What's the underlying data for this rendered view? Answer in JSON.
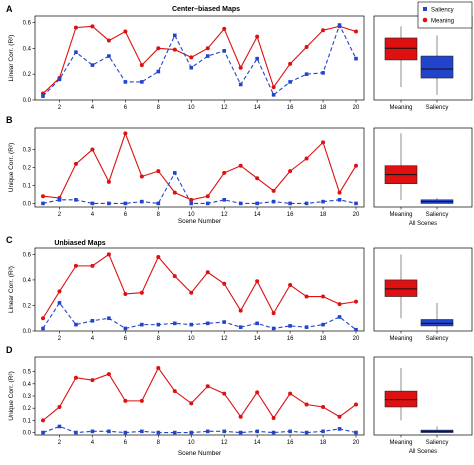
{
  "figure": {
    "section_titles": [
      "Center–biased Maps",
      "Unbiased Maps"
    ],
    "legend": [
      {
        "label": "Saliency",
        "color": "#2244cc",
        "marker": "square",
        "line": "dashed"
      },
      {
        "label": "Meaning",
        "color": "#dd1111",
        "marker": "circle",
        "line": "solid"
      }
    ]
  },
  "chart_data": [
    {
      "panel": "A",
      "type": "line",
      "title": "Center–biased Maps",
      "xlabel": "",
      "ylabel": "Linear Corr. (R²)",
      "x": [
        1,
        2,
        3,
        4,
        5,
        6,
        7,
        8,
        9,
        10,
        11,
        12,
        13,
        14,
        15,
        16,
        17,
        18,
        19,
        20
      ],
      "xticks": [
        2,
        4,
        6,
        8,
        10,
        12,
        14,
        16,
        18,
        20
      ],
      "ylim": [
        0,
        0.65
      ],
      "yticks": [
        0.0,
        0.2,
        0.4,
        0.6
      ],
      "ytick_labels": [
        "0.0",
        "0.2",
        "0.4",
        "0.6"
      ],
      "series": [
        {
          "name": "Meaning",
          "values": [
            0.05,
            0.17,
            0.56,
            0.57,
            0.46,
            0.53,
            0.27,
            0.4,
            0.39,
            0.33,
            0.4,
            0.55,
            0.25,
            0.49,
            0.1,
            0.28,
            0.41,
            0.54,
            0.57,
            0.53
          ]
        },
        {
          "name": "Saliency",
          "values": [
            0.03,
            0.16,
            0.37,
            0.27,
            0.34,
            0.14,
            0.14,
            0.22,
            0.5,
            0.25,
            0.34,
            0.38,
            0.12,
            0.32,
            0.04,
            0.14,
            0.2,
            0.21,
            0.58,
            0.32
          ]
        }
      ]
    },
    {
      "panel": "A-summary",
      "type": "box",
      "categories": [
        "Meaning",
        "Saliency"
      ],
      "xlabel": "",
      "ylim": [
        0,
        0.65
      ],
      "boxes": [
        {
          "category": "Meaning",
          "min": 0.1,
          "q1": 0.31,
          "median": 0.4,
          "q3": 0.48,
          "max": 0.57
        },
        {
          "category": "Saliency",
          "min": 0.04,
          "q1": 0.17,
          "median": 0.24,
          "q3": 0.34,
          "max": 0.5
        }
      ]
    },
    {
      "panel": "B",
      "type": "line",
      "xlabel": "Scene Number",
      "ylabel": "Unique Corr. (R²)",
      "x": [
        1,
        2,
        3,
        4,
        5,
        6,
        7,
        8,
        9,
        10,
        11,
        12,
        13,
        14,
        15,
        16,
        17,
        18,
        19,
        20
      ],
      "xticks": [
        2,
        4,
        6,
        8,
        10,
        12,
        14,
        16,
        18,
        20
      ],
      "ylim": [
        -0.02,
        0.42
      ],
      "yticks": [
        0.0,
        0.1,
        0.2,
        0.3
      ],
      "ytick_labels": [
        "0.0",
        "0.1",
        "0.2",
        "0.3"
      ],
      "series": [
        {
          "name": "Meaning",
          "values": [
            0.04,
            0.03,
            0.22,
            0.3,
            0.12,
            0.39,
            0.15,
            0.18,
            0.06,
            0.02,
            0.04,
            0.17,
            0.21,
            0.14,
            0.07,
            0.18,
            0.25,
            0.34,
            0.06,
            0.21
          ]
        },
        {
          "name": "Saliency",
          "values": [
            0.0,
            0.02,
            0.02,
            0.0,
            0.0,
            0.0,
            0.01,
            0.0,
            0.17,
            0.0,
            0.0,
            0.02,
            0.0,
            0.0,
            0.01,
            0.0,
            0.0,
            0.01,
            0.02,
            0.0
          ]
        }
      ]
    },
    {
      "panel": "B-summary",
      "type": "box",
      "categories": [
        "Meaning",
        "Saliency"
      ],
      "xlabel": "All Scenes",
      "ylim": [
        -0.02,
        0.42
      ],
      "boxes": [
        {
          "category": "Meaning",
          "min": 0.02,
          "q1": 0.11,
          "median": 0.16,
          "q3": 0.21,
          "max": 0.39
        },
        {
          "category": "Saliency",
          "min": 0.0,
          "q1": 0.0,
          "median": 0.01,
          "q3": 0.02,
          "max": 0.03
        }
      ]
    },
    {
      "panel": "C",
      "type": "line",
      "title": "Unbiased Maps",
      "xlabel": "",
      "ylabel": "Linear Corr. (R²)",
      "x": [
        1,
        2,
        3,
        4,
        5,
        6,
        7,
        8,
        9,
        10,
        11,
        12,
        13,
        14,
        15,
        16,
        17,
        18,
        19,
        20
      ],
      "xticks": [
        2,
        4,
        6,
        8,
        10,
        12,
        14,
        16,
        18,
        20
      ],
      "ylim": [
        0,
        0.65
      ],
      "yticks": [
        0.0,
        0.2,
        0.4,
        0.6
      ],
      "ytick_labels": [
        "0.0",
        "0.2",
        "0.4",
        "0.6"
      ],
      "series": [
        {
          "name": "Meaning",
          "values": [
            0.1,
            0.31,
            0.51,
            0.51,
            0.6,
            0.29,
            0.3,
            0.58,
            0.43,
            0.3,
            0.46,
            0.37,
            0.16,
            0.39,
            0.14,
            0.36,
            0.27,
            0.27,
            0.21,
            0.23
          ]
        },
        {
          "name": "Saliency",
          "values": [
            0.02,
            0.22,
            0.05,
            0.08,
            0.1,
            0.02,
            0.05,
            0.05,
            0.06,
            0.05,
            0.06,
            0.07,
            0.03,
            0.06,
            0.02,
            0.04,
            0.03,
            0.05,
            0.11,
            0.01
          ]
        }
      ]
    },
    {
      "panel": "C-summary",
      "type": "box",
      "categories": [
        "Meaning",
        "Saliency"
      ],
      "xlabel": "",
      "ylim": [
        0,
        0.65
      ],
      "boxes": [
        {
          "category": "Meaning",
          "min": 0.1,
          "q1": 0.27,
          "median": 0.33,
          "q3": 0.4,
          "max": 0.6
        },
        {
          "category": "Saliency",
          "min": 0.01,
          "q1": 0.04,
          "median": 0.06,
          "q3": 0.09,
          "max": 0.22
        }
      ]
    },
    {
      "panel": "D",
      "type": "line",
      "xlabel": "Scene Number",
      "ylabel": "Unique Corr. (R²)",
      "x": [
        1,
        2,
        3,
        4,
        5,
        6,
        7,
        8,
        9,
        10,
        11,
        12,
        13,
        14,
        15,
        16,
        17,
        18,
        19,
        20
      ],
      "xticks": [
        2,
        4,
        6,
        8,
        10,
        12,
        14,
        16,
        18,
        20
      ],
      "ylim": [
        -0.02,
        0.62
      ],
      "yticks": [
        0.0,
        0.1,
        0.2,
        0.3,
        0.4,
        0.5
      ],
      "ytick_labels": [
        "0.0",
        "0.1",
        "0.2",
        "0.3",
        "0.4",
        "0.5"
      ],
      "series": [
        {
          "name": "Meaning",
          "values": [
            0.1,
            0.21,
            0.45,
            0.43,
            0.48,
            0.26,
            0.26,
            0.53,
            0.34,
            0.24,
            0.38,
            0.32,
            0.13,
            0.33,
            0.12,
            0.32,
            0.23,
            0.21,
            0.13,
            0.23
          ]
        },
        {
          "name": "Saliency",
          "values": [
            0.0,
            0.05,
            0.0,
            0.01,
            0.01,
            0.0,
            0.01,
            0.0,
            0.0,
            0.0,
            0.01,
            0.01,
            0.0,
            0.01,
            0.0,
            0.01,
            0.0,
            0.01,
            0.03,
            0.0
          ]
        }
      ]
    },
    {
      "panel": "D-summary",
      "type": "box",
      "categories": [
        "Meaning",
        "Saliency"
      ],
      "xlabel": "All Scenes",
      "ylim": [
        -0.02,
        0.62
      ],
      "boxes": [
        {
          "category": "Meaning",
          "min": 0.1,
          "q1": 0.21,
          "median": 0.27,
          "q3": 0.34,
          "max": 0.53
        },
        {
          "category": "Saliency",
          "min": 0.0,
          "q1": 0.0,
          "median": 0.01,
          "q3": 0.02,
          "max": 0.05
        }
      ]
    }
  ]
}
